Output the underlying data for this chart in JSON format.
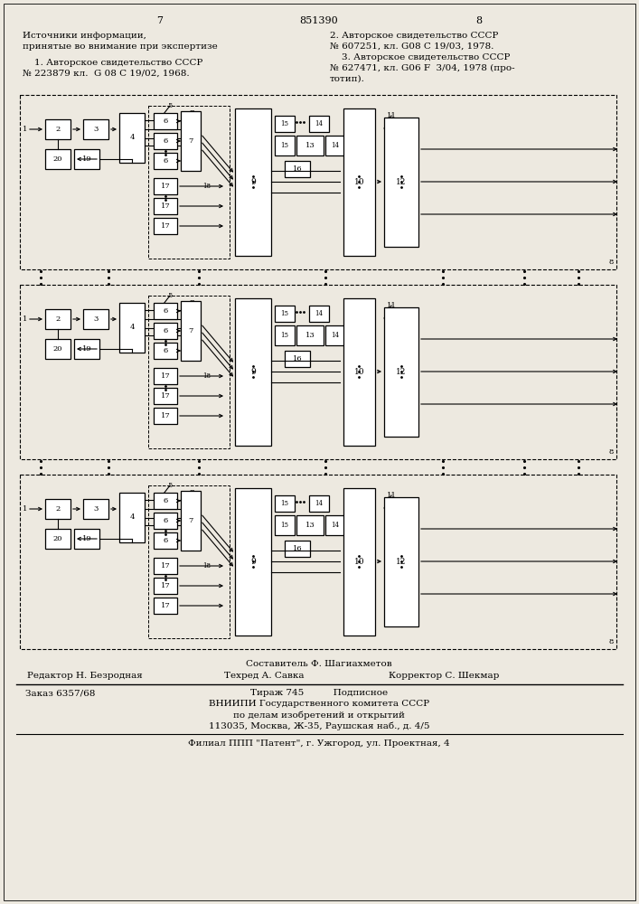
{
  "bg_color": "#ede9e0",
  "page_num_left": "7",
  "page_num_center": "851390",
  "page_num_right": "8",
  "header_left_line1": "Источники информации,",
  "header_left_line2": "принятые во внимание при экспертизе",
  "header_left_line3": "    1. Авторское свидетельство СССР",
  "header_left_line4": "№ 223879 кл.  G 08 C 19/02, 1968.",
  "header_right_line1": "2. Авторское свидетельство СССР",
  "header_right_line2": "№ 607251, кл. G08 С 19/03, 1978.",
  "header_right_line3": "    3. Авторское свидетельство СССР",
  "header_right_line4": "№ 627471, кл. G06 F  3/04, 1978 (про-",
  "header_right_line5": "тотип).",
  "footer_author": "Составитель Ф. Шагиахметов",
  "footer_editor": "Редактор Н. Безродная",
  "footer_tech": "Техред А. Савка",
  "footer_corrector": "Корректор С. Шекмар",
  "footer_order": "Заказ 6357/68",
  "footer_tirazh": "Тираж 745",
  "footer_podpisnoe": "Подписное",
  "footer_vniip1": "ВНИИПИ Государственного комитета СССР",
  "footer_vniip2": "по делам изобретений и открытий",
  "footer_vniip3": "113035, Москва, Ж-35, Раушская наб., д. 4/5",
  "footer_filial": "Филиал ППП \"Патент\", г. Ужгород, ул. Проектная, 4"
}
